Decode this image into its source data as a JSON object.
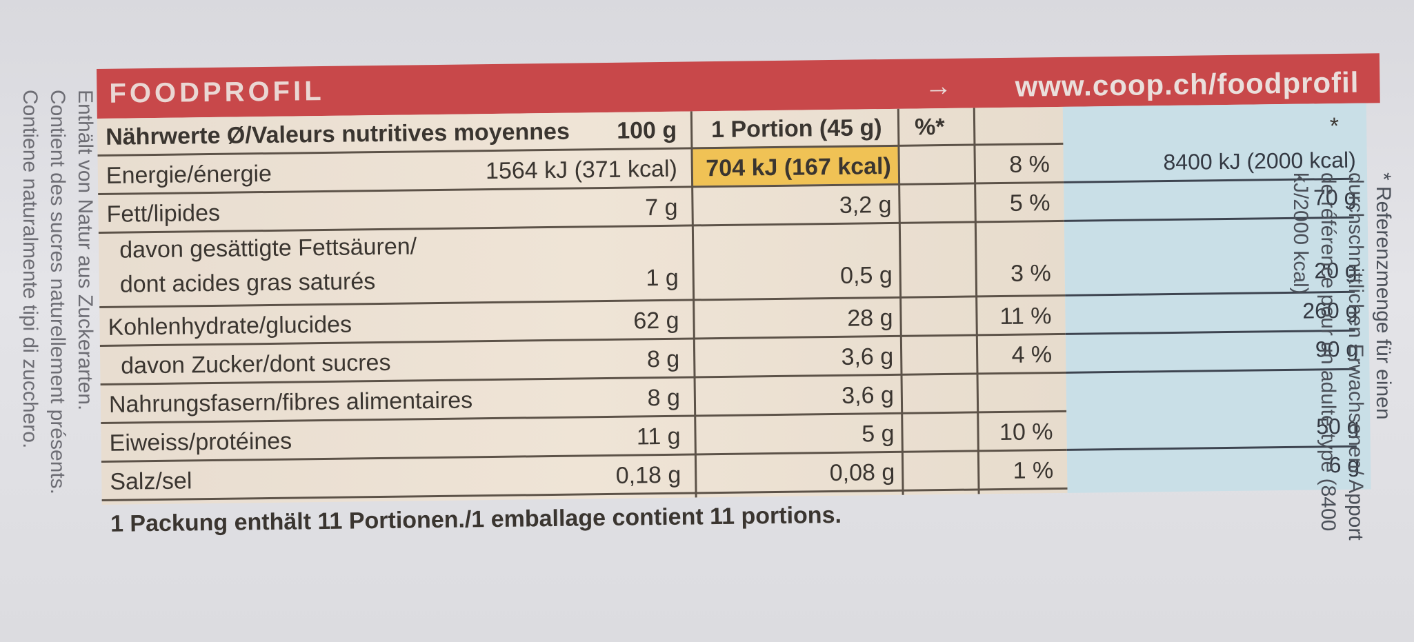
{
  "header": {
    "title": "FOODPROFIL",
    "arrow": "→",
    "url": "www.coop.ch/foodprofil"
  },
  "table": {
    "head": {
      "label": "Nährwerte Ø/Valeurs nutritives moyennes",
      "per100": "100 g",
      "portion": "1 Portion (45 g)",
      "percent": "%*",
      "ref_star": "*"
    },
    "rows": [
      {
        "label": "Energie/énergie",
        "per100": "1564 kJ (371 kcal)",
        "portion": "704 kJ (167 kcal)",
        "percent": "8 %",
        "ref": "8400 kJ (2000 kcal)"
      },
      {
        "label": "Fett/lipides",
        "per100": "7 g",
        "portion": "3,2 g",
        "percent": "5 %",
        "ref": "70 g"
      },
      {
        "label": "davon gesättigte Fettsäuren/",
        "label2": "dont acides gras saturés",
        "per100": "1 g",
        "portion": "0,5 g",
        "percent": "3 %",
        "ref": "20 g"
      },
      {
        "label": "Kohlenhydrate/glucides",
        "per100": "62 g",
        "portion": "28 g",
        "percent": "11 %",
        "ref": "260 g"
      },
      {
        "label": "davon Zucker/dont sucres",
        "per100": "8 g",
        "portion": "3,6 g",
        "percent": "4 %",
        "ref": "90 g"
      },
      {
        "label": "Nahrungsfasern/fibres alimentaires",
        "per100": "8 g",
        "portion": "3,6 g",
        "percent": "",
        "ref": ""
      },
      {
        "label": "Eiweiss/protéines",
        "per100": "11 g",
        "portion": "5 g",
        "percent": "10 %",
        "ref": "50 g"
      },
      {
        "label": "Salz/sel",
        "per100": "0,18 g",
        "portion": "0,08 g",
        "percent": "1 %",
        "ref": "6 g"
      }
    ],
    "footer": "1 Packung enthält 11 Portionen./1 emballage contient 11 portions."
  },
  "ref_note": "* Referenzmenge für einen durchschnittlichen Erwachsenen/ Apport de référence pour un adulte-type (8400 kJ/2000 kcal)",
  "side_text": {
    "line1": "Enthält von Natur aus Zuckerarten.",
    "line2": "Contient des sucres naturellement présents.",
    "line3": "Contiene naturalmente tipi di zucchero."
  },
  "colors": {
    "header": "#c8484a",
    "table_bg": "#efe4d6",
    "highlight": "#f0c255",
    "ref_bg": "#c9dfe7"
  }
}
